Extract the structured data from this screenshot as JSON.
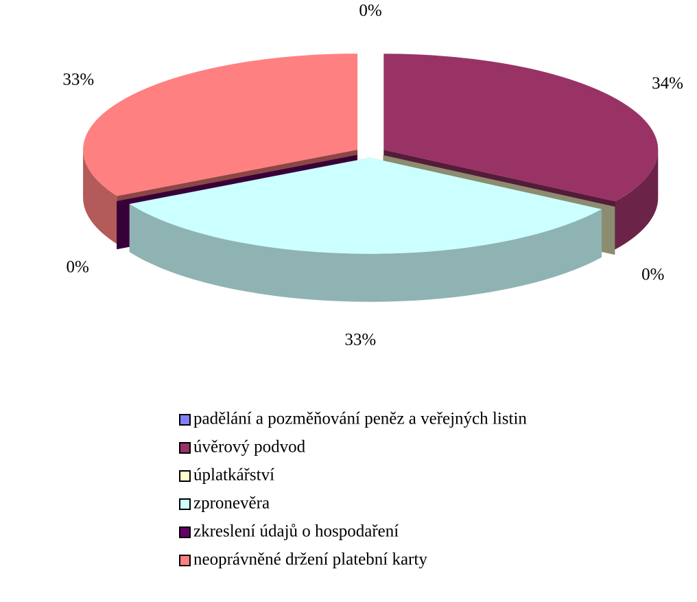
{
  "chart_data": {
    "type": "pie",
    "categories": [
      "padělání a pozměňování peněz a veřejných listin",
      "úvěrový podvod",
      "úplatkářství",
      "zpronevěra",
      "zkreslení údajů o hospodaření",
      "neoprávněné držení platební karty"
    ],
    "values": [
      0,
      34,
      0,
      33,
      0,
      33
    ],
    "value_labels": [
      "0%",
      "34%",
      "0%",
      "33%",
      "0%",
      "33%"
    ],
    "colors": [
      "#8080ff",
      "#993366",
      "#ffffcc",
      "#ccffff",
      "#660066",
      "#ff8080"
    ],
    "three_d": true,
    "legend": "bottom"
  }
}
